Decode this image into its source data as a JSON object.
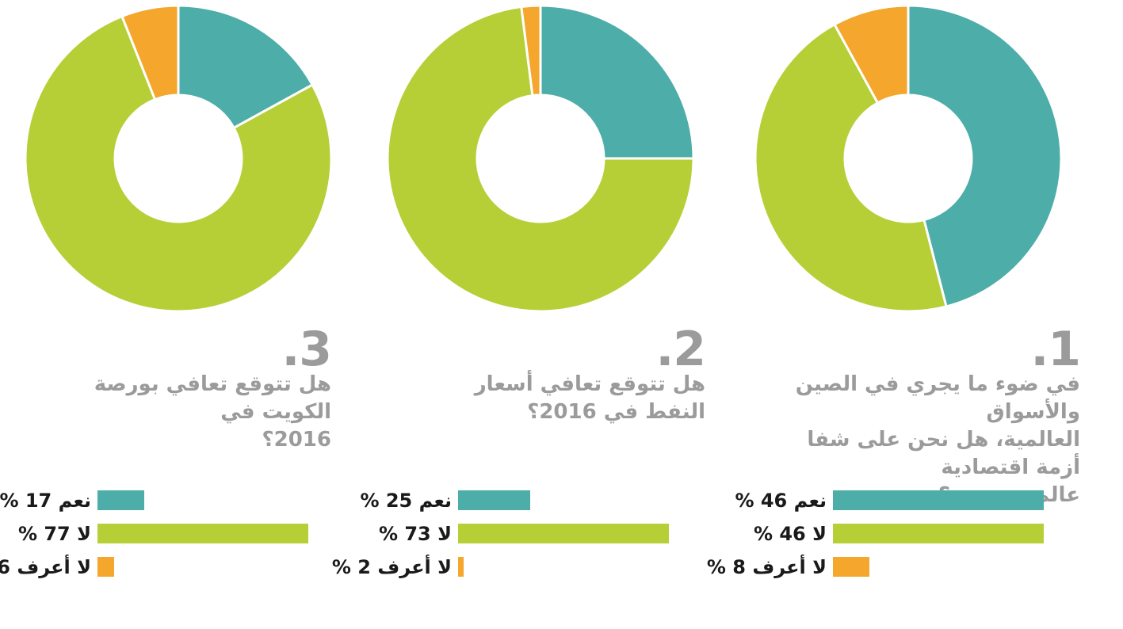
{
  "page": {
    "background": "#ffffff",
    "language": "ar",
    "description_labels": {
      "yes": "نعم",
      "no": "لا",
      "dont_know": "لا أعرف"
    }
  },
  "colors": {
    "yes": "#4DADA8",
    "no": "#B6CF36",
    "dont_know": "#F4A62D",
    "question_text": "#9B9B9B",
    "label_text": "#1A1A1A",
    "slice_separator": "#FFFFFF"
  },
  "chart_data": [
    {
      "type": "pie",
      "variant": "donut",
      "number_display": ".1",
      "question_lines": [
        "في ضوء ما يجري في الصين والأسواق",
        "العالمية، هل نحن على شفا أزمة اقتصادية",
        "عالمية جديدة؟"
      ],
      "unit": "%",
      "legend_position": "below",
      "legend_style": "bars-normalized-to-max",
      "answers": [
        {
          "label": "نعم",
          "value": 46,
          "color_key": "yes"
        },
        {
          "label": "لا",
          "value": 46,
          "color_key": "no"
        },
        {
          "label": "لا أعرف",
          "value": 8,
          "color_key": "dont_know"
        }
      ]
    },
    {
      "type": "pie",
      "variant": "donut",
      "number_display": ".2",
      "question_lines": [
        "هل تتوقع تعافي أسعار النفط في 2016؟"
      ],
      "unit": "%",
      "legend_position": "below",
      "legend_style": "bars-normalized-to-max",
      "answers": [
        {
          "label": "نعم",
          "value": 25,
          "color_key": "yes"
        },
        {
          "label": "لا",
          "value": 73,
          "color_key": "no"
        },
        {
          "label": "لا أعرف",
          "value": 2,
          "color_key": "dont_know"
        }
      ]
    },
    {
      "type": "pie",
      "variant": "donut",
      "number_display": ".3",
      "question_lines": [
        "هل تتوقع تعافي بورصة الكويت في",
        "2016؟"
      ],
      "unit": "%",
      "legend_position": "below",
      "legend_style": "bars-normalized-to-max",
      "answers": [
        {
          "label": "نعم",
          "value": 17,
          "color_key": "yes"
        },
        {
          "label": "لا",
          "value": 77,
          "color_key": "no"
        },
        {
          "label": "لا أعرف",
          "value": 6,
          "color_key": "dont_know"
        }
      ]
    }
  ]
}
